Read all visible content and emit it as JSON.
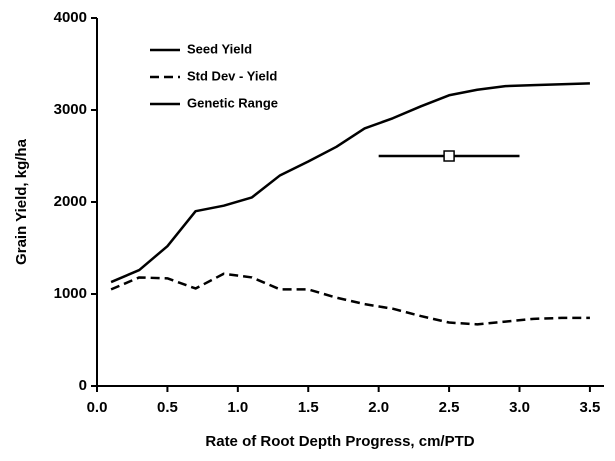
{
  "chart_data": {
    "type": "line",
    "xlabel": "Rate of Root Depth Progress, cm/PTD",
    "ylabel": "Grain Yield, kg/ha",
    "x": [
      0.1,
      0.3,
      0.5,
      0.7,
      0.9,
      1.1,
      1.3,
      1.5,
      1.7,
      1.9,
      2.1,
      2.3,
      2.5,
      2.7,
      2.9,
      3.1,
      3.3,
      3.5
    ],
    "series": [
      {
        "name": "Seed Yield",
        "color": "#000000",
        "linestyle": "solid",
        "values": [
          1130,
          1260,
          1520,
          1900,
          1960,
          2050,
          2290,
          2440,
          2600,
          2800,
          2910,
          3040,
          3160,
          3220,
          3260,
          3270,
          3280,
          3290
        ]
      },
      {
        "name": "Std Dev - Yield",
        "color": "#000000",
        "linestyle": "dashed",
        "values": [
          1050,
          1180,
          1170,
          1060,
          1220,
          1180,
          1050,
          1050,
          960,
          890,
          840,
          760,
          690,
          670,
          700,
          730,
          740,
          740
        ]
      },
      {
        "name": "Genetic Range",
        "color": "#000000",
        "linestyle": "solid",
        "x": [
          2.5
        ],
        "values": [
          2500
        ],
        "xerr": [
          0.5
        ]
      }
    ],
    "xlim": [
      0,
      3.6
    ],
    "xticks": [
      {
        "value": 0,
        "label": "0.0"
      },
      0.5,
      {
        "value": 1,
        "label": "1.0"
      },
      1.5,
      {
        "value": 2,
        "label": "2.0"
      },
      2.5,
      {
        "value": 3,
        "label": "3.0"
      },
      3.5
    ],
    "ylim": [
      0,
      4000
    ],
    "yticks": [
      0,
      1000,
      2000,
      3000,
      4000
    ],
    "grid": false,
    "legend": "upper left"
  }
}
